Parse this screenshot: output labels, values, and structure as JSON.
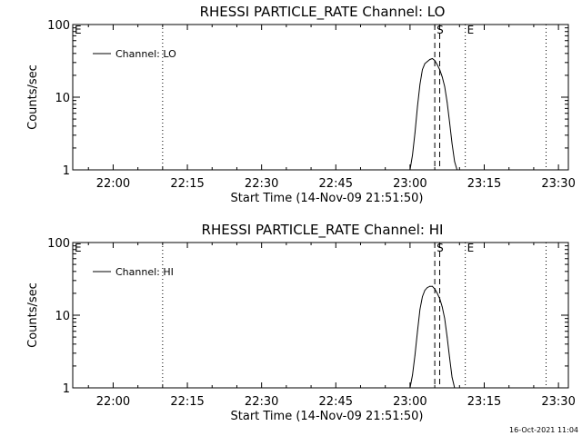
{
  "timestamp": "16-Oct-2021 11:04",
  "chart_data": [
    {
      "type": "line",
      "title": "RHESSI PARTICLE_RATE Channel: LO",
      "xlabel": "Start Time (14-Nov-09 21:51:50)",
      "ylabel": "Counts/sec",
      "xscale": "time",
      "yscale": "log",
      "xlim": [
        "21:51:50",
        "23:32:00"
      ],
      "ylim": [
        1,
        100
      ],
      "x_ticks": [
        "22:00",
        "22:15",
        "22:30",
        "22:45",
        "23:00",
        "23:15",
        "23:30"
      ],
      "y_ticks": [
        "1",
        "10",
        "100"
      ],
      "legend": {
        "position": "top-left",
        "entries": [
          "Channel: LO"
        ]
      },
      "series": [
        {
          "name": "Channel: LO",
          "x": [
            "23:00:00",
            "23:00:30",
            "23:01:00",
            "23:01:30",
            "23:02:00",
            "23:02:30",
            "23:03:00",
            "23:03:30",
            "23:04:00",
            "23:04:30",
            "23:05:00",
            "23:05:30",
            "23:06:00",
            "23:06:30",
            "23:07:00",
            "23:07:30",
            "23:08:00",
            "23:08:30",
            "23:09:00",
            "23:09:30"
          ],
          "y": [
            1.0,
            1.6,
            3.2,
            7.5,
            15,
            24,
            29,
            31,
            33,
            34,
            32,
            28,
            24,
            19,
            14,
            8.5,
            4.5,
            2.3,
            1.3,
            1.0
          ]
        }
      ],
      "markers": [
        {
          "label": "E",
          "time": "21:51:50",
          "style": "dotted"
        },
        {
          "label": "",
          "time": "22:10:00",
          "style": "dotted"
        },
        {
          "label": "S",
          "time": "23:05:00",
          "style": "dashed"
        },
        {
          "label": "",
          "time": "23:06:00",
          "style": "dashed"
        },
        {
          "label": "E",
          "time": "23:11:10",
          "style": "dotted"
        },
        {
          "label": "",
          "time": "23:27:30",
          "style": "dotted"
        }
      ]
    },
    {
      "type": "line",
      "title": "RHESSI PARTICLE_RATE Channel: HI",
      "xlabel": "Start Time (14-Nov-09 21:51:50)",
      "ylabel": "Counts/sec",
      "xscale": "time",
      "yscale": "log",
      "xlim": [
        "21:51:50",
        "23:32:00"
      ],
      "ylim": [
        1,
        100
      ],
      "x_ticks": [
        "22:00",
        "22:15",
        "22:30",
        "22:45",
        "23:00",
        "23:15",
        "23:30"
      ],
      "y_ticks": [
        "1",
        "10",
        "100"
      ],
      "legend": {
        "position": "top-left",
        "entries": [
          "Channel: HI"
        ]
      },
      "series": [
        {
          "name": "Channel: HI",
          "x": [
            "23:00:00",
            "23:00:30",
            "23:01:00",
            "23:01:30",
            "23:02:00",
            "23:02:30",
            "23:03:00",
            "23:03:30",
            "23:04:00",
            "23:04:30",
            "23:05:00",
            "23:05:30",
            "23:06:00",
            "23:06:30",
            "23:07:00",
            "23:07:30",
            "23:08:00",
            "23:08:30",
            "23:09:00"
          ],
          "y": [
            1.0,
            1.5,
            2.8,
            6.0,
            12,
            18,
            22,
            24,
            25,
            25,
            23,
            20,
            17,
            13,
            9,
            5,
            2.6,
            1.4,
            1.0
          ]
        }
      ],
      "markers": [
        {
          "label": "E",
          "time": "21:51:50",
          "style": "dotted"
        },
        {
          "label": "",
          "time": "22:10:00",
          "style": "dotted"
        },
        {
          "label": "S",
          "time": "23:05:00",
          "style": "dashed"
        },
        {
          "label": "",
          "time": "23:06:00",
          "style": "dashed"
        },
        {
          "label": "E",
          "time": "23:11:10",
          "style": "dotted"
        },
        {
          "label": "",
          "time": "23:27:30",
          "style": "dotted"
        }
      ]
    }
  ]
}
